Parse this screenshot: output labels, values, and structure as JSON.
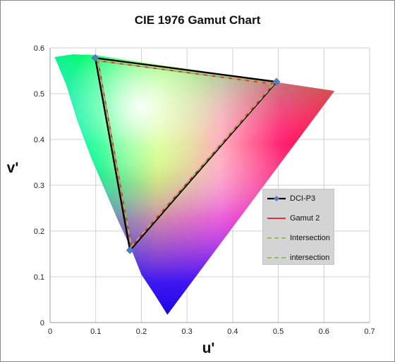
{
  "chart_data": {
    "type": "line",
    "title": "CIE 1976 Gamut Chart",
    "xlabel": "u'",
    "ylabel": "v'",
    "xlim": [
      0,
      0.7
    ],
    "ylim": [
      0,
      0.6
    ],
    "xticks": [
      "0",
      "0.1",
      "0.2",
      "0.3",
      "0.4",
      "0.5",
      "0.6",
      "0.7"
    ],
    "yticks": [
      "0",
      "0.1",
      "0.2",
      "0.3",
      "0.4",
      "0.5",
      "0.6"
    ],
    "grid": true,
    "legend_position": "right",
    "spectral_locus": [
      [
        0.257,
        0.017
      ],
      [
        0.23,
        0.06
      ],
      [
        0.2,
        0.105
      ],
      [
        0.176,
        0.165
      ],
      [
        0.15,
        0.22
      ],
      [
        0.12,
        0.29
      ],
      [
        0.09,
        0.36
      ],
      [
        0.06,
        0.44
      ],
      [
        0.035,
        0.52
      ],
      [
        0.01,
        0.58
      ],
      [
        0.05,
        0.586
      ],
      [
        0.1,
        0.584
      ],
      [
        0.623,
        0.506
      ]
    ],
    "series": [
      {
        "name": "DCI-P3",
        "color": "#000000",
        "marker_color": "#4f81bd",
        "points": [
          [
            0.099,
            0.578
          ],
          [
            0.496,
            0.526
          ],
          [
            0.175,
            0.158
          ],
          [
            0.099,
            0.578
          ]
        ]
      },
      {
        "name": "Gamut 2",
        "color": "#d9363e",
        "points": [
          [
            0.105,
            0.572
          ],
          [
            0.49,
            0.521
          ],
          [
            0.178,
            0.166
          ],
          [
            0.105,
            0.572
          ]
        ]
      },
      {
        "name": "Intersection",
        "color": "#9bbb59",
        "points": [
          [
            0.105,
            0.572
          ],
          [
            0.49,
            0.521
          ],
          [
            0.178,
            0.166
          ],
          [
            0.105,
            0.572
          ]
        ]
      },
      {
        "name": "intersection",
        "color": "#9bbb59",
        "points": [
          [
            0.105,
            0.572
          ],
          [
            0.49,
            0.521
          ],
          [
            0.178,
            0.166
          ],
          [
            0.105,
            0.572
          ]
        ]
      }
    ]
  }
}
